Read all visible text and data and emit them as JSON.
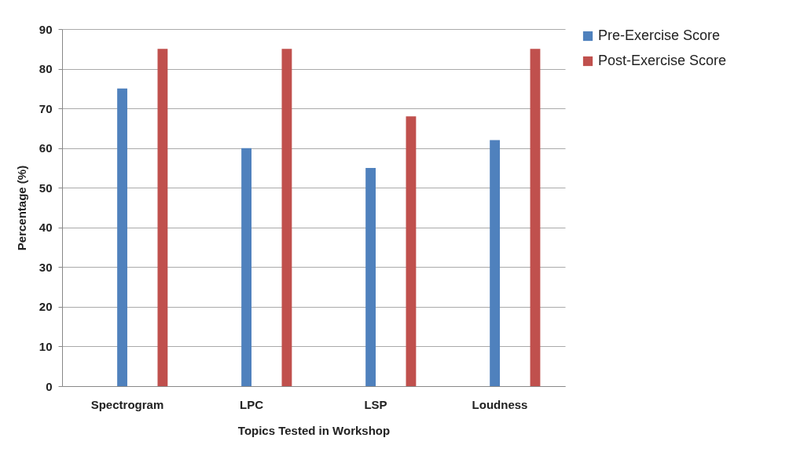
{
  "chart_data": {
    "type": "bar",
    "xlabel": "Topics Tested in Workshop",
    "ylabel": "Percentage (%)",
    "categories": [
      "Spectrogram",
      "LPC",
      "LSP",
      "Loudness"
    ],
    "series": [
      {
        "name": "Pre-Exercise Score",
        "color": "#4f81bd",
        "values": [
          75,
          60,
          55,
          62
        ]
      },
      {
        "name": "Post-Exercise Score",
        "color": "#c0504d",
        "values": [
          85,
          85,
          68,
          85
        ]
      }
    ],
    "ylim": [
      0,
      90
    ],
    "yticks": [
      0,
      10,
      20,
      30,
      40,
      50,
      60,
      70,
      80,
      90
    ],
    "grid": "y",
    "legend": "right"
  }
}
